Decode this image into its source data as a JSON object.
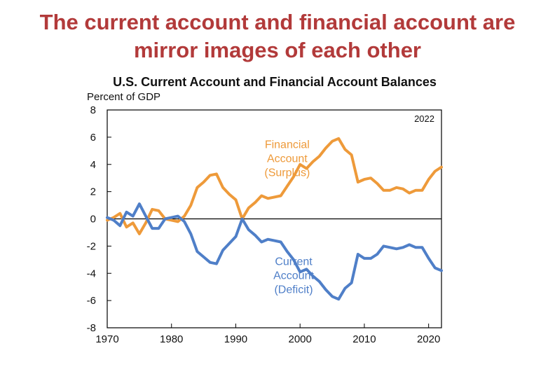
{
  "slide": {
    "headline_line1": "The current account and financial account are",
    "headline_line2": "mirror images of each other"
  },
  "colors": {
    "headline": "#b23a3a",
    "financial_account": "#ee9a3a",
    "current_account": "#4f7fc8"
  },
  "chart_data": {
    "type": "line",
    "title": "U.S. Current Account and Financial Account Balances",
    "ylabel": "Percent of GDP",
    "xlabel": "",
    "corner_label": "2022",
    "xlim": [
      1970,
      2022
    ],
    "ylim": [
      -8,
      8
    ],
    "xticks": [
      1970,
      1980,
      1990,
      2000,
      2010,
      2020
    ],
    "yticks": [
      8,
      6,
      4,
      2,
      0,
      -2,
      -4,
      -6,
      -8
    ],
    "grid": false,
    "zero_line": true,
    "x": [
      1970,
      1971,
      1972,
      1973,
      1974,
      1975,
      1976,
      1977,
      1978,
      1979,
      1980,
      1981,
      1982,
      1983,
      1984,
      1985,
      1986,
      1987,
      1988,
      1989,
      1990,
      1991,
      1992,
      1993,
      1994,
      1995,
      1996,
      1997,
      1998,
      1999,
      2000,
      2001,
      2002,
      2003,
      2004,
      2005,
      2006,
      2007,
      2008,
      2009,
      2010,
      2011,
      2012,
      2013,
      2014,
      2015,
      2016,
      2017,
      2018,
      2019,
      2020,
      2021,
      2022
    ],
    "series": [
      {
        "name": "Financial Account (Surplus)",
        "label_lines": [
          "Financial",
          "Account",
          "(Surplus)"
        ],
        "label_position": [
          1998,
          5.2
        ],
        "color": "#ee9a3a",
        "values": [
          -0.1,
          0.1,
          0.4,
          -0.6,
          -0.3,
          -1.1,
          -0.3,
          0.7,
          0.6,
          0.0,
          -0.1,
          -0.2,
          0.2,
          1.0,
          2.3,
          2.7,
          3.2,
          3.3,
          2.3,
          1.8,
          1.4,
          0.0,
          0.8,
          1.2,
          1.7,
          1.5,
          1.6,
          1.7,
          2.4,
          3.1,
          4.0,
          3.7,
          4.2,
          4.6,
          5.2,
          5.7,
          5.9,
          5.1,
          4.7,
          2.7,
          2.9,
          3.0,
          2.6,
          2.1,
          2.1,
          2.3,
          2.2,
          1.9,
          2.1,
          2.1,
          2.9,
          3.5,
          3.8
        ]
      },
      {
        "name": "Current Account (Deficit)",
        "label_lines": [
          "Current",
          "Account",
          "(Deficit)"
        ],
        "label_position": [
          1999,
          -3.4
        ],
        "color": "#4f7fc8",
        "values": [
          0.1,
          -0.1,
          -0.5,
          0.5,
          0.2,
          1.1,
          0.2,
          -0.7,
          -0.7,
          0.0,
          0.1,
          0.2,
          -0.2,
          -1.1,
          -2.4,
          -2.8,
          -3.2,
          -3.3,
          -2.3,
          -1.8,
          -1.3,
          0.0,
          -0.8,
          -1.2,
          -1.7,
          -1.5,
          -1.6,
          -1.7,
          -2.4,
          -3.0,
          -3.9,
          -3.7,
          -4.2,
          -4.6,
          -5.2,
          -5.7,
          -5.9,
          -5.1,
          -4.7,
          -2.6,
          -2.9,
          -2.9,
          -2.6,
          -2.0,
          -2.1,
          -2.2,
          -2.1,
          -1.9,
          -2.1,
          -2.1,
          -2.9,
          -3.6,
          -3.8
        ]
      }
    ]
  }
}
